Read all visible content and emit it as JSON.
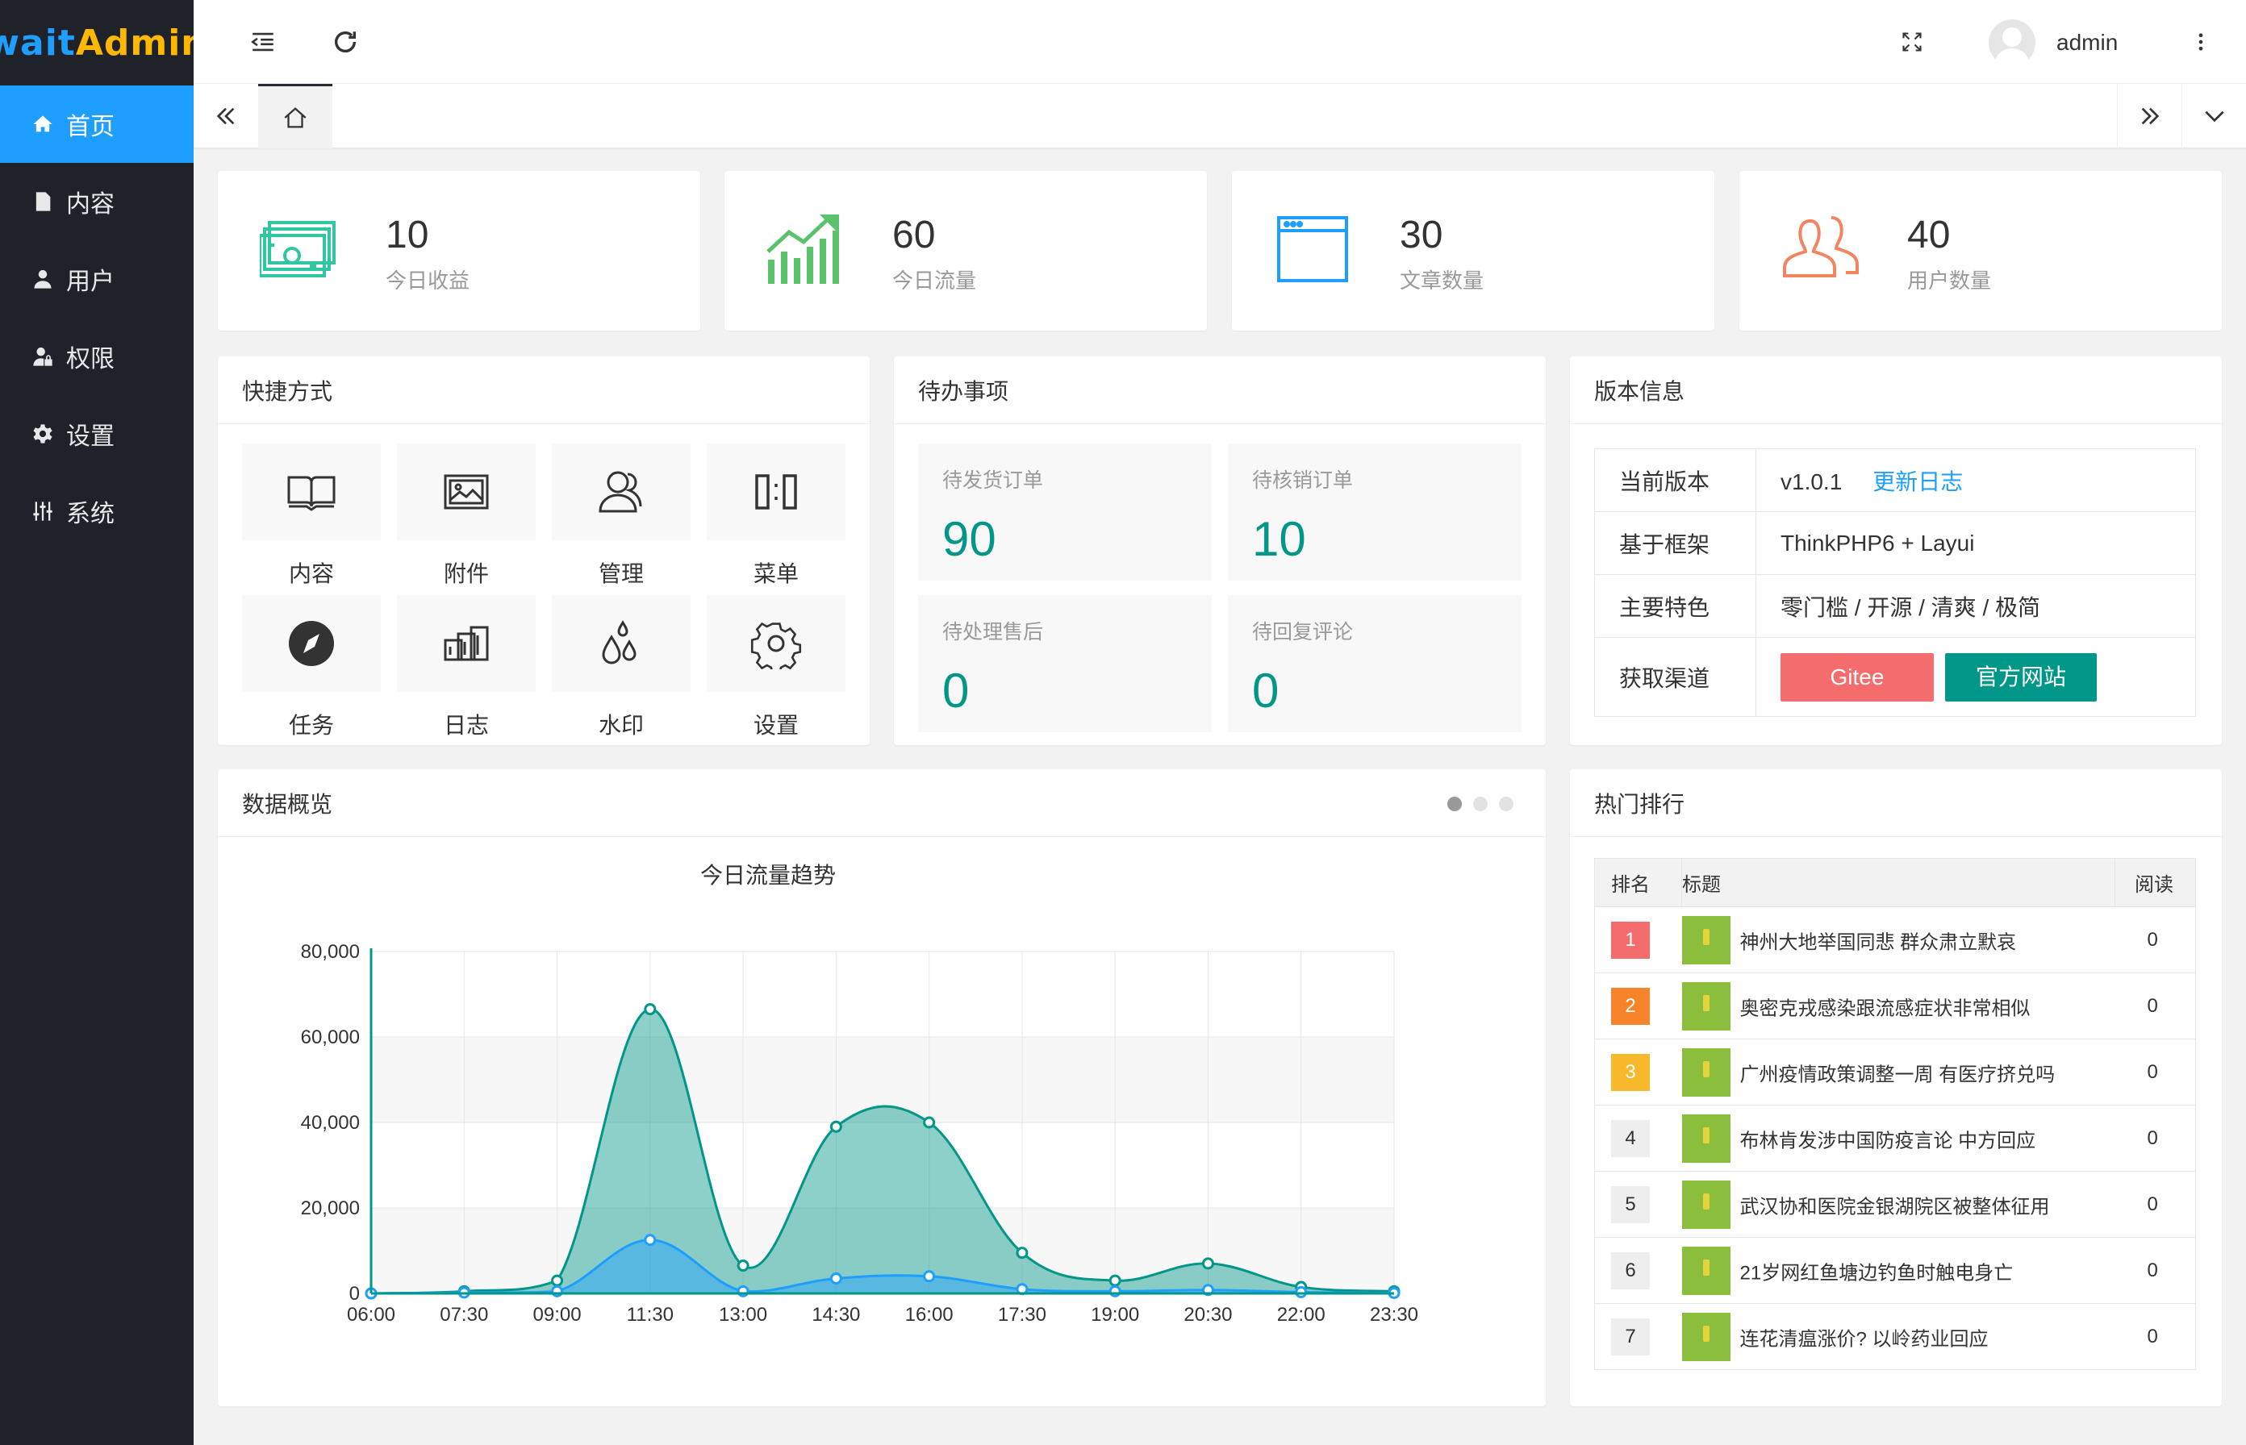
{
  "app": {
    "logo_part1": "wait",
    "logo_part2": "Admin"
  },
  "sidebar": {
    "items": [
      {
        "label": "首页",
        "icon": "home-icon",
        "active": true
      },
      {
        "label": "内容",
        "icon": "document-icon"
      },
      {
        "label": "用户",
        "icon": "user-icon"
      },
      {
        "label": "权限",
        "icon": "user-lock-icon"
      },
      {
        "label": "设置",
        "icon": "gear-icon"
      },
      {
        "label": "系统",
        "icon": "sliders-icon"
      }
    ]
  },
  "header": {
    "username": "admin"
  },
  "stats": [
    {
      "value": "10",
      "label": "今日收益",
      "icon": "money-icon",
      "color": "#2ec7a1"
    },
    {
      "value": "60",
      "label": "今日流量",
      "icon": "trend-up-icon",
      "color": "#5ac26a"
    },
    {
      "value": "30",
      "label": "文章数量",
      "icon": "browser-window-icon",
      "color": "#1e9fff"
    },
    {
      "value": "40",
      "label": "用户数量",
      "icon": "users-icon",
      "color": "#f4845f"
    }
  ],
  "shortcuts": {
    "title": "快捷方式",
    "items": [
      {
        "label": "内容",
        "icon": "book-icon"
      },
      {
        "label": "附件",
        "icon": "image-icon"
      },
      {
        "label": "管理",
        "icon": "user-group-icon"
      },
      {
        "label": "菜单",
        "icon": "menu-blocks-icon"
      },
      {
        "label": "任务",
        "icon": "compass-icon"
      },
      {
        "label": "日志",
        "icon": "log-icon"
      },
      {
        "label": "水印",
        "icon": "drops-icon"
      },
      {
        "label": "设置",
        "icon": "gear-icon"
      }
    ]
  },
  "todo": {
    "title": "待办事项",
    "items": [
      {
        "label": "待发货订单",
        "value": "90"
      },
      {
        "label": "待核销订单",
        "value": "10"
      },
      {
        "label": "待处理售后",
        "value": "0"
      },
      {
        "label": "待回复评论",
        "value": "0"
      }
    ]
  },
  "version": {
    "title": "版本信息",
    "rows": [
      {
        "key": "当前版本",
        "value": "v1.0.1",
        "link": "更新日志"
      },
      {
        "key": "基于框架",
        "value": "ThinkPHP6 + Layui"
      },
      {
        "key": "主要特色",
        "value": "零门槛 / 开源 / 清爽 / 极简"
      },
      {
        "key": "获取渠道",
        "btn1": "Gitee",
        "btn2": "官方网站"
      }
    ]
  },
  "overview": {
    "title": "数据概览"
  },
  "hot": {
    "title": "热门排行",
    "headers": [
      "排名",
      "标题",
      "阅读"
    ],
    "rows": [
      {
        "rank": "1",
        "title": "神州大地举国同悲 群众肃立默哀",
        "reads": "0"
      },
      {
        "rank": "2",
        "title": "奥密克戎感染跟流感症状非常相似",
        "reads": "0"
      },
      {
        "rank": "3",
        "title": "广州疫情政策调整一周 有医疗挤兑吗",
        "reads": "0"
      },
      {
        "rank": "4",
        "title": "布林肯发涉中国防疫言论 中方回应",
        "reads": "0"
      },
      {
        "rank": "5",
        "title": "武汉协和医院金银湖院区被整体征用",
        "reads": "0"
      },
      {
        "rank": "6",
        "title": "21岁网红鱼塘边钓鱼时触电身亡",
        "reads": "0"
      },
      {
        "rank": "7",
        "title": "连花清瘟涨价? 以岭药业回应",
        "reads": "0"
      }
    ]
  },
  "chart_data": {
    "type": "area",
    "title": "今日流量趋势",
    "x": [
      "06:00",
      "07:30",
      "09:00",
      "11:30",
      "13:00",
      "14:30",
      "16:00",
      "17:30",
      "19:00",
      "20:30",
      "22:00",
      "23:30"
    ],
    "x_ticks": [
      "06:00",
      "07:30",
      "09:00",
      "11:30",
      "13:00",
      "14:30",
      "16:00",
      "17:30",
      "19:00",
      "20:30",
      "22:00",
      "23:30"
    ],
    "y_ticks": [
      "0",
      "20,000",
      "40,000",
      "60,000",
      "80,000"
    ],
    "ylim": [
      0,
      80000
    ],
    "series": [
      {
        "values": [
          0,
          500,
          3000,
          66500,
          6500,
          39000,
          40000,
          9500,
          3000,
          7000,
          1500,
          500
        ],
        "color": "#009688"
      },
      {
        "values": [
          0,
          200,
          500,
          12500,
          500,
          3500,
          4000,
          1000,
          500,
          800,
          300,
          100
        ],
        "color": "#1e9fff"
      }
    ],
    "grid": true
  }
}
